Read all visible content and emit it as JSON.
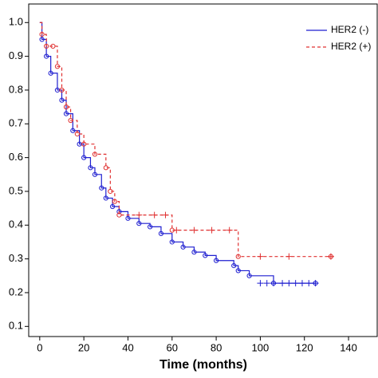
{
  "chart_data": {
    "type": "line",
    "step": true,
    "xlabel": "Time (months)",
    "xlim": [
      -5,
      153
    ],
    "ylim": [
      0.07,
      1.055
    ],
    "xticks": [
      0,
      20,
      40,
      60,
      80,
      100,
      120,
      140
    ],
    "yticks": [
      {
        "value": 0.1,
        "label": "0.1"
      },
      {
        "value": 0.2,
        "label": "0.2"
      },
      {
        "value": 0.3,
        "label": "0.3"
      },
      {
        "value": 0.4,
        "label": "0.4"
      },
      {
        "value": 0.5,
        "label": "0.5"
      },
      {
        "value": 0.6,
        "label": "0.6"
      },
      {
        "value": 0.7,
        "label": "0.7"
      },
      {
        "value": 0.8,
        "label": "0.8"
      },
      {
        "value": 0.9,
        "label": "0.9"
      },
      {
        "value": 1,
        "label": "1.0"
      }
    ],
    "legend_position": "upper right",
    "series": [
      {
        "name": "HER2 (-)",
        "color": "#1f1fd0",
        "dash": false,
        "x": [
          0,
          1,
          3,
          5,
          8,
          10,
          12,
          15,
          18,
          20,
          23,
          25,
          28,
          30,
          33,
          36,
          40,
          45,
          50,
          55,
          60,
          65,
          70,
          75,
          80,
          88,
          90,
          95,
          106,
          125
        ],
        "values": [
          1.0,
          0.95,
          0.9,
          0.85,
          0.8,
          0.77,
          0.73,
          0.68,
          0.64,
          0.6,
          0.57,
          0.55,
          0.51,
          0.48,
          0.455,
          0.44,
          0.42,
          0.405,
          0.395,
          0.375,
          0.35,
          0.335,
          0.32,
          0.31,
          0.295,
          0.28,
          0.265,
          0.25,
          0.228,
          0.228
        ],
        "censored_x": [
          100,
          103,
          106,
          110,
          113,
          116,
          119,
          122,
          125
        ],
        "censored_values": [
          0.228,
          0.228,
          0.228,
          0.228,
          0.228,
          0.228,
          0.228,
          0.228,
          0.228
        ]
      },
      {
        "name": "HER2 (+)",
        "color": "#e03030",
        "dash": true,
        "x": [
          0,
          1,
          3,
          6,
          8,
          10,
          12,
          14,
          17,
          20,
          25,
          30,
          32,
          34,
          36,
          60,
          90,
          132
        ],
        "values": [
          1.0,
          0.965,
          0.93,
          0.93,
          0.87,
          0.8,
          0.75,
          0.71,
          0.67,
          0.64,
          0.61,
          0.57,
          0.5,
          0.47,
          0.43,
          0.385,
          0.307,
          0.307
        ],
        "censored_x": [
          45,
          52,
          57,
          62,
          70,
          78,
          86,
          100,
          113,
          132
        ],
        "censored_values": [
          0.43,
          0.43,
          0.43,
          0.385,
          0.385,
          0.385,
          0.385,
          0.307,
          0.307,
          0.307
        ]
      }
    ]
  }
}
